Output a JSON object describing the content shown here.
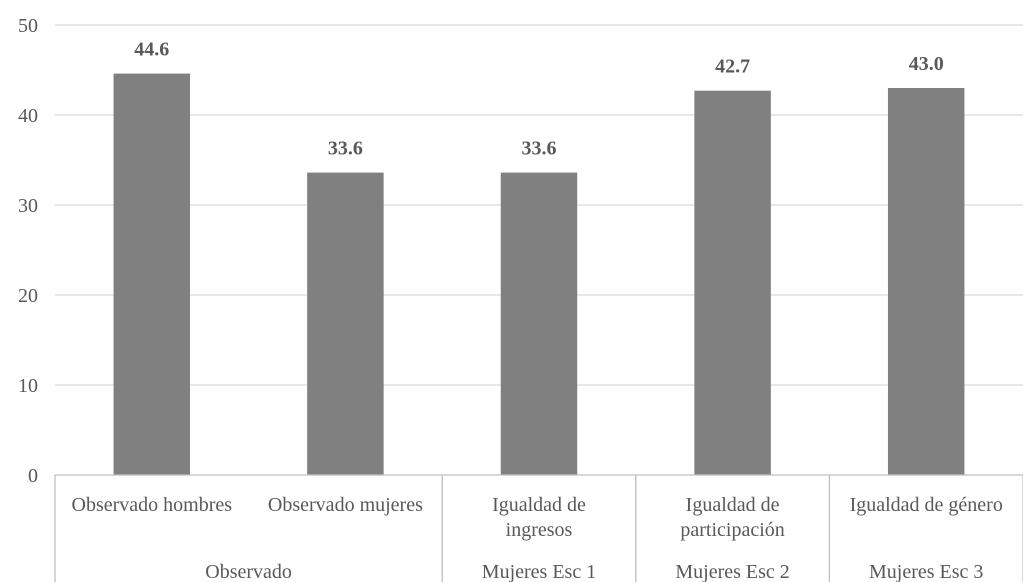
{
  "chart_data": {
    "type": "bar",
    "title": "",
    "xlabel": "",
    "ylabel": "",
    "ylim": [
      0,
      50
    ],
    "yticks": [
      0,
      10,
      20,
      30,
      40,
      50
    ],
    "grid": true,
    "legend": "none",
    "bar_color": "#808080",
    "categories": [
      [
        "Observado hombres"
      ],
      [
        "Observado mujeres"
      ],
      [
        "Igualdad de",
        "ingresos"
      ],
      [
        "Igualdad de",
        "participación"
      ],
      [
        "Igualdad de género"
      ]
    ],
    "groups": [
      {
        "label": "Observado",
        "span": 2
      },
      {
        "label": "Mujeres Esc 1",
        "span": 1
      },
      {
        "label": "Mujeres Esc 2",
        "span": 1
      },
      {
        "label": "Mujeres Esc 3",
        "span": 1
      }
    ],
    "values": [
      44.6,
      33.6,
      33.6,
      42.7,
      43.0
    ],
    "data_labels": [
      "44.6",
      "33.6",
      "33.6",
      "42.7",
      "43.0"
    ]
  }
}
